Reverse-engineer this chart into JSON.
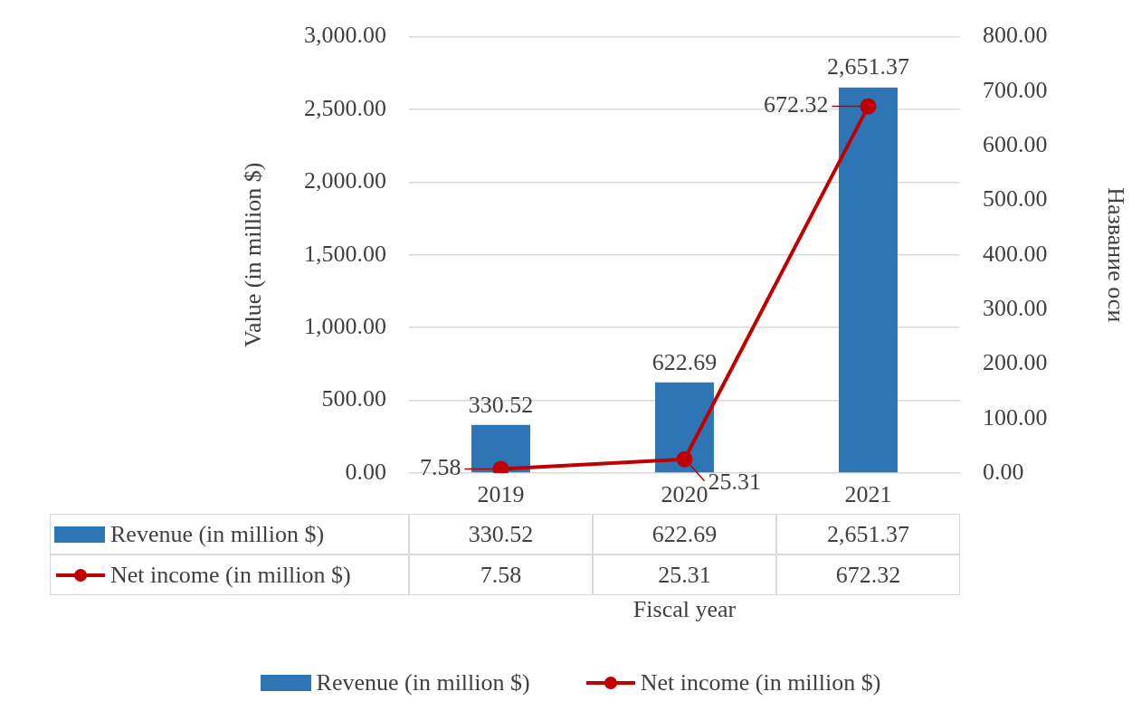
{
  "chart_data": {
    "type": "bar",
    "xlabel": "Fiscal year",
    "ylabel": "Value (in million $)",
    "y2label": "Название оси",
    "categories": [
      "2019",
      "2020",
      "2021"
    ],
    "series": [
      {
        "name": "Revenue (in million $)",
        "color": "#2e75b6",
        "values": [
          330.52,
          622.69,
          2651.37
        ],
        "value_labels": [
          "330.52",
          "622.69",
          "2,651.37"
        ]
      },
      {
        "name": "Net income (in million $)",
        "type": "line",
        "axis": "y2",
        "color": "#c00000",
        "marker": "circle",
        "values": [
          7.58,
          25.31,
          672.32
        ],
        "value_labels": [
          "7.58",
          "25.31",
          "672.32"
        ]
      }
    ],
    "ylim": [
      0,
      3000
    ],
    "yticks": [
      {
        "value": 0,
        "label": "0.00"
      },
      {
        "value": 500,
        "label": "500.00"
      },
      {
        "value": 1000,
        "label": "1,000.00"
      },
      {
        "value": 1500,
        "label": "1,500.00"
      },
      {
        "value": 2000,
        "label": "2,000.00"
      },
      {
        "value": 2500,
        "label": "2,500.00"
      },
      {
        "value": 3000,
        "label": "3,000.00"
      }
    ],
    "y2lim": [
      0,
      800
    ],
    "y2ticks": [
      {
        "value": 0,
        "label": "0.00"
      },
      {
        "value": 100,
        "label": "100.00"
      },
      {
        "value": 200,
        "label": "200.00"
      },
      {
        "value": 300,
        "label": "300.00"
      },
      {
        "value": 400,
        "label": "400.00"
      },
      {
        "value": 500,
        "label": "500.00"
      },
      {
        "value": 600,
        "label": "600.00"
      },
      {
        "value": 700,
        "label": "700.00"
      },
      {
        "value": 800,
        "label": "800.00"
      }
    ],
    "grid": "y",
    "legend": "bottom"
  }
}
